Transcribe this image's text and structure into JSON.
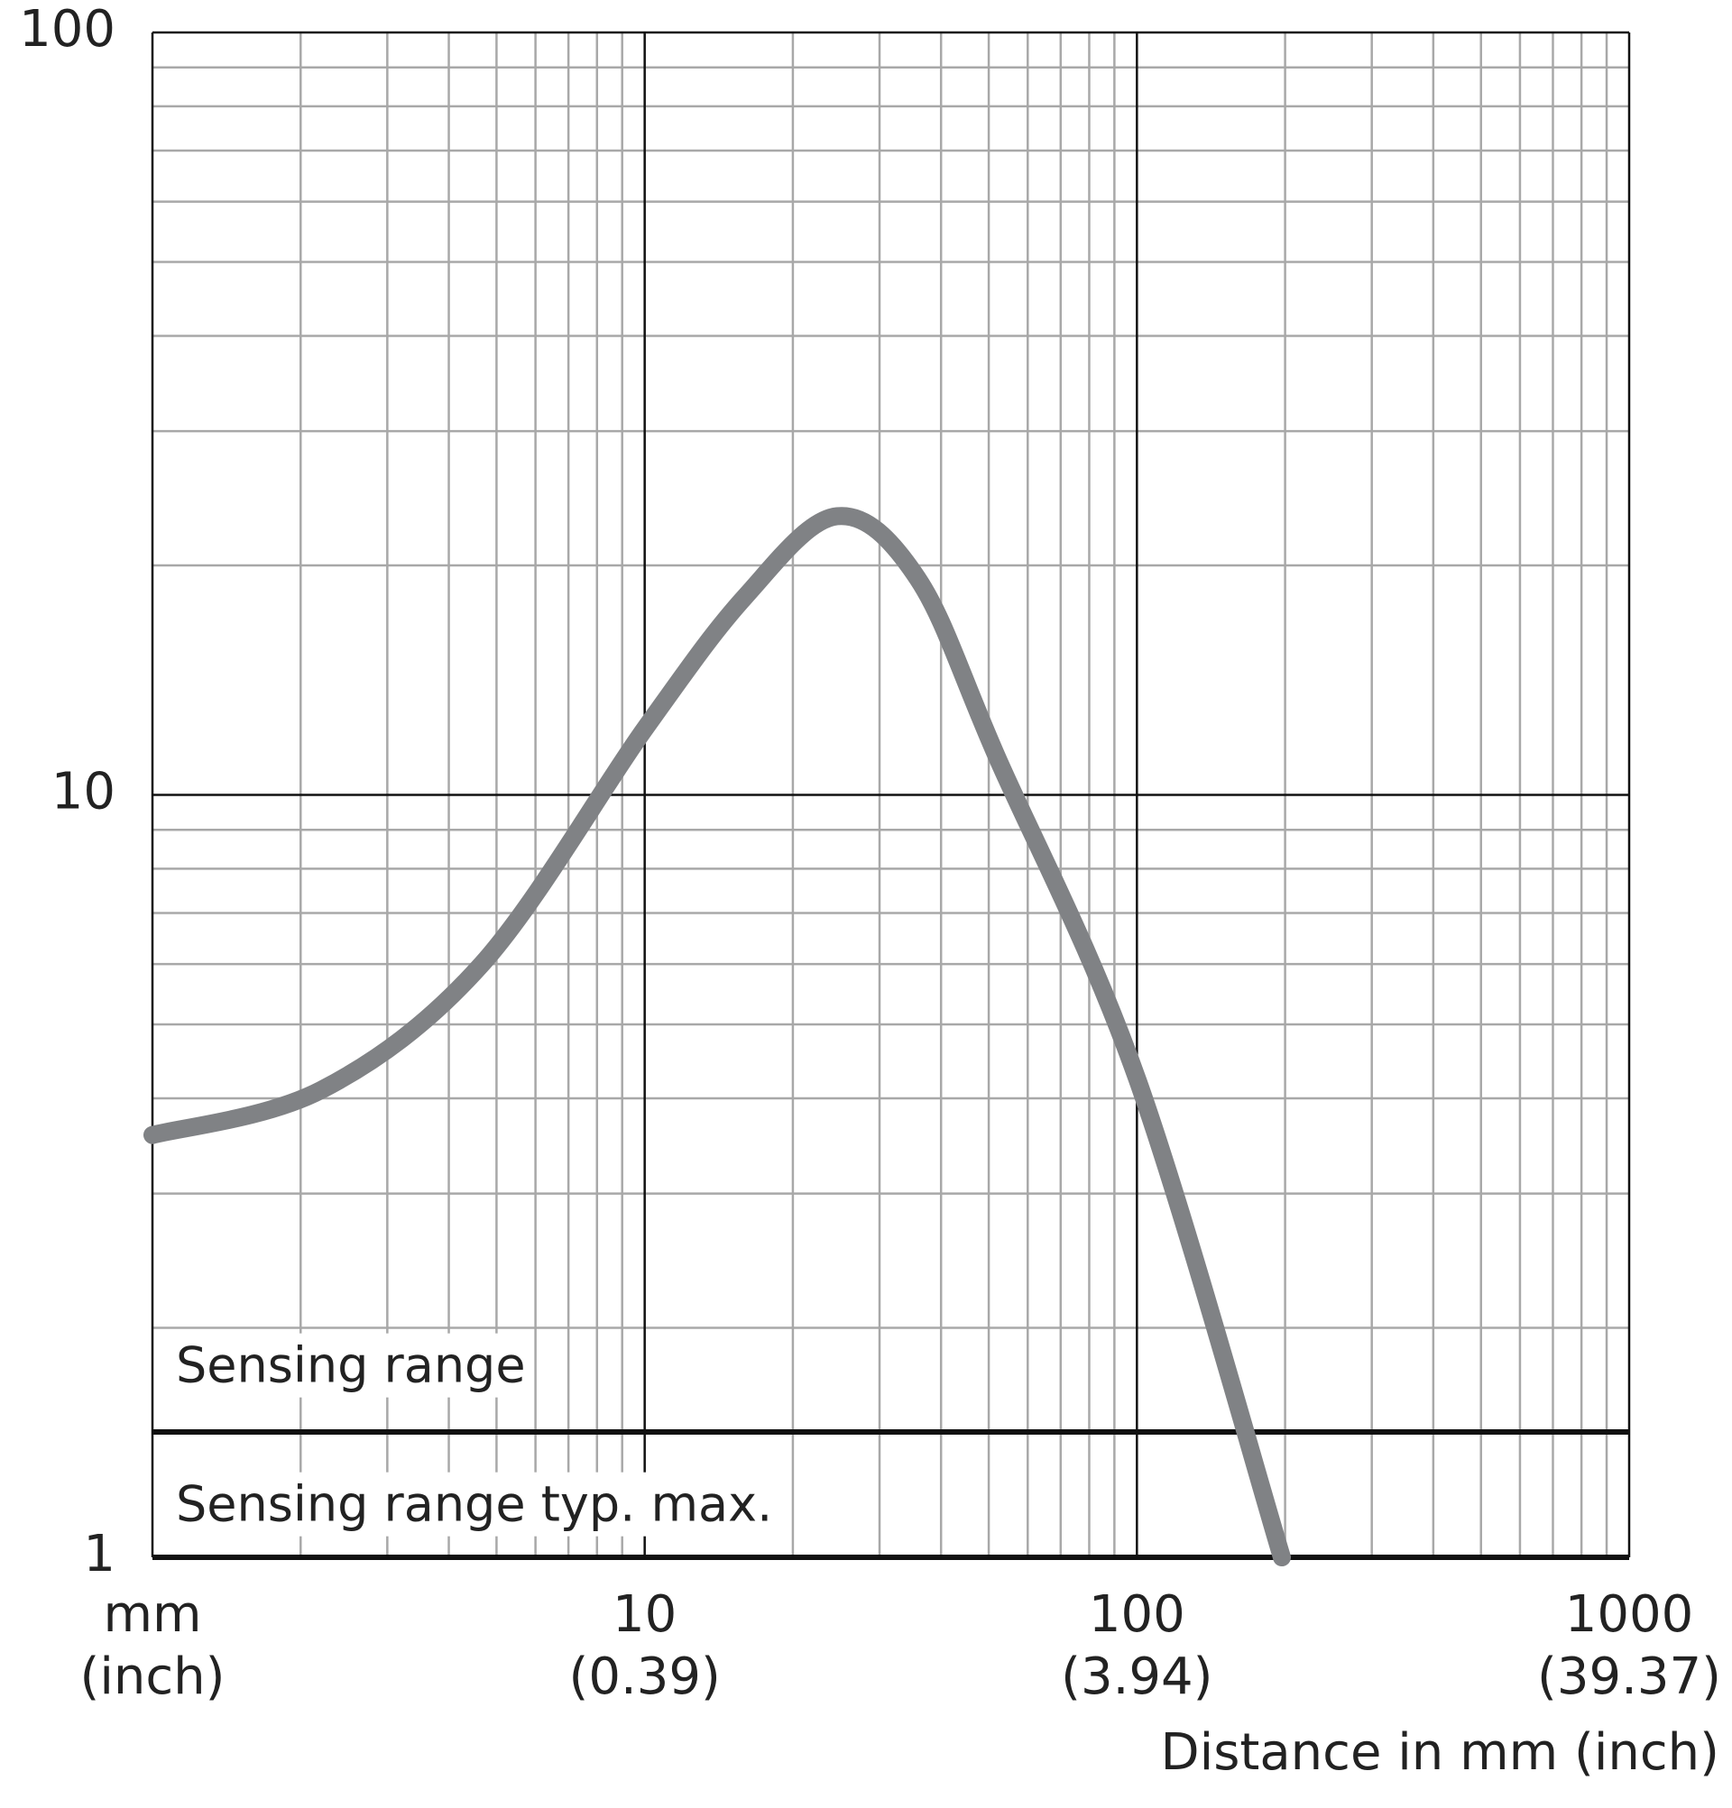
{
  "chart_data": {
    "type": "line",
    "x_label": "Distance in mm (inch)",
    "x": [
      1,
      2.2,
      4.67,
      10,
      16,
      24.6,
      35.9,
      52,
      100,
      197
    ],
    "series": [
      {
        "color": "#808285",
        "values": [
          3.58,
          4.1,
          6.0,
          12.2,
          18.2,
          23.2,
          19.2,
          11.2,
          4.25,
          1
        ]
      }
    ],
    "xlim": [
      1,
      1000
    ],
    "ylim": [
      1,
      100
    ],
    "xticks": [
      {
        "value": 1,
        "label": "mm"
      },
      10,
      100,
      1000
    ],
    "xtick_sublabels": [
      "(inch)",
      "(0.39)",
      "(3.94)",
      "(39.37)"
    ],
    "yticks": [
      1,
      10,
      100
    ],
    "log_x": true,
    "log_y": true,
    "grid": true,
    "reference_line": {
      "value": 1.46,
      "label_above": "Sensing range",
      "label_below": "Sensing range typ. max."
    }
  }
}
